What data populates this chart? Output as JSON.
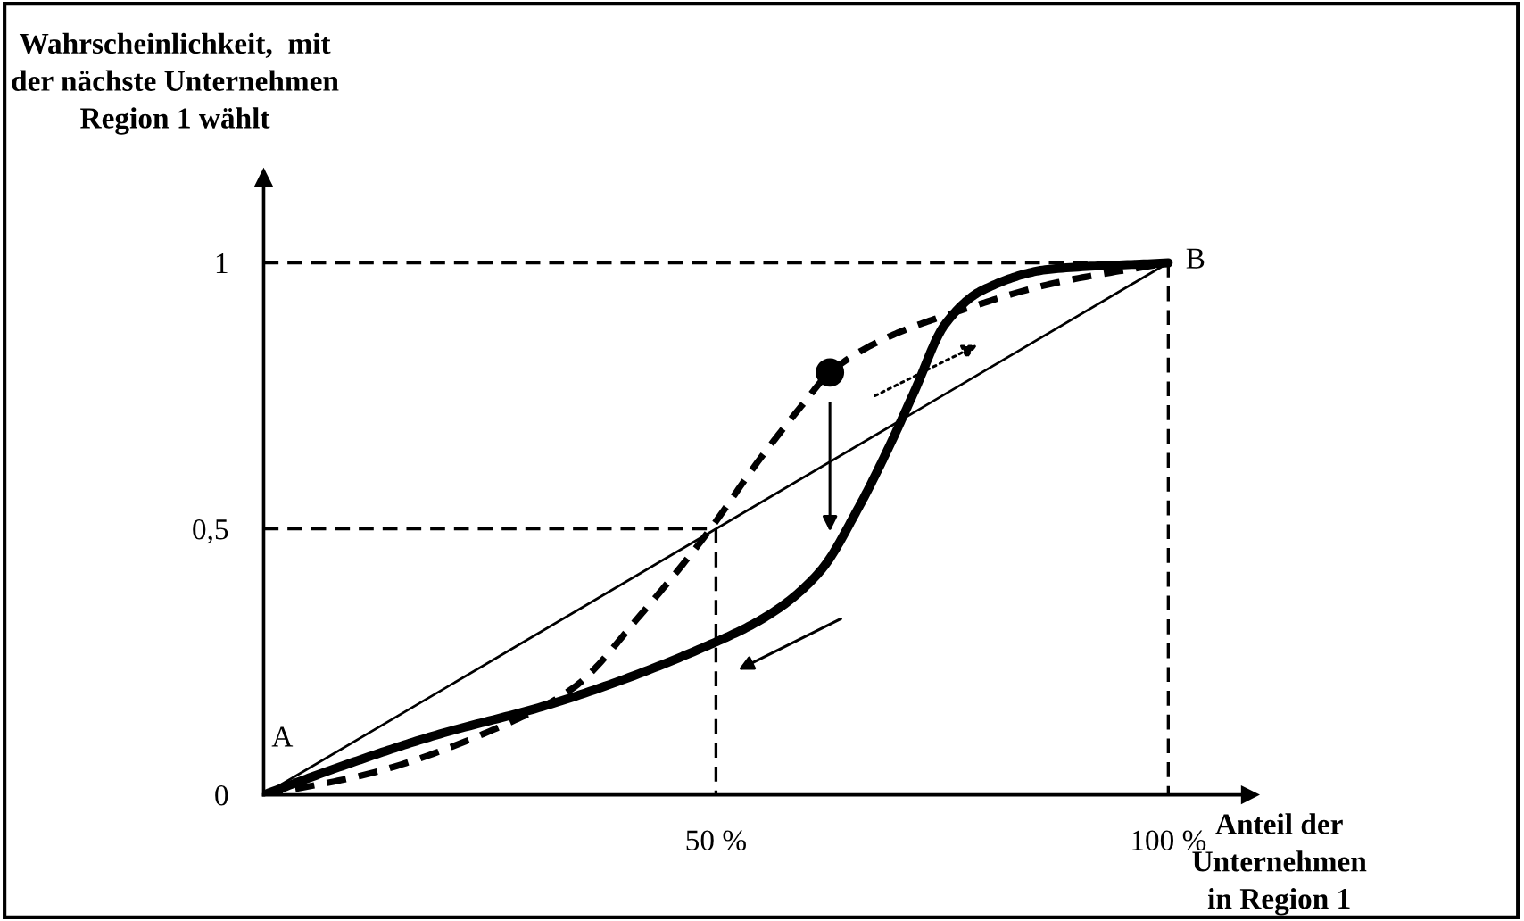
{
  "chart_data": {
    "type": "line",
    "xlabel": "Anteil der\nUnternehmen\nin Region 1",
    "ylabel": "Wahrscheinlichkeit,  mit\nder nächste Unternehmen\nRegion 1 wählt",
    "xlim": [
      0,
      109
    ],
    "ylim": [
      0,
      1.16
    ],
    "xticks": [
      {
        "value": 50,
        "label": "50 %"
      },
      {
        "value": 100,
        "label": "100 %"
      }
    ],
    "yticks": [
      0,
      {
        "value": 0.5,
        "label": "0,5"
      },
      1
    ],
    "grid": false,
    "legend": false,
    "annotations": [
      "A",
      "B"
    ],
    "series": [
      {
        "type": "line",
        "color": "#000000",
        "line_style": "dashed",
        "x": [
          0,
          100,
          100
        ],
        "values": [
          1,
          1,
          0
        ]
      },
      {
        "type": "line",
        "color": "#000000",
        "line_style": "dashed",
        "x": [
          0,
          50,
          50
        ],
        "values": [
          0.5,
          0.5,
          0
        ]
      },
      {
        "color": "#000000",
        "line_style": "solid",
        "x": [
          0,
          100
        ],
        "values": [
          0,
          1
        ]
      },
      {
        "color": "#000000",
        "line_style": "dashed",
        "x": [
          0,
          11.7,
          26.8,
          34.3,
          41.8,
          49,
          54.8,
          59.6,
          62.6,
          69.1,
          76.6,
          86.9,
          100
        ],
        "values": [
          0,
          0.04,
          0.133,
          0.202,
          0.341,
          0.491,
          0.63,
          0.734,
          0.794,
          0.861,
          0.908,
          0.96,
          1
        ]
      },
      {
        "color": "#000000",
        "line_style": "solid",
        "x": [
          0,
          8.3,
          18.6,
          32.2,
          48.6,
          56.1,
          61.6,
          65.7,
          69.1,
          71.9,
          75.3,
          79.4,
          86.9,
          100
        ],
        "values": [
          0,
          0.052,
          0.11,
          0.173,
          0.277,
          0.341,
          0.422,
          0.538,
          0.653,
          0.757,
          0.884,
          0.948,
          0.988,
          1
        ]
      },
      {
        "type": "scatter",
        "color": "#000000",
        "marker": "circle",
        "x": [
          62.6
        ],
        "values": [
          0.794
        ]
      }
    ]
  }
}
